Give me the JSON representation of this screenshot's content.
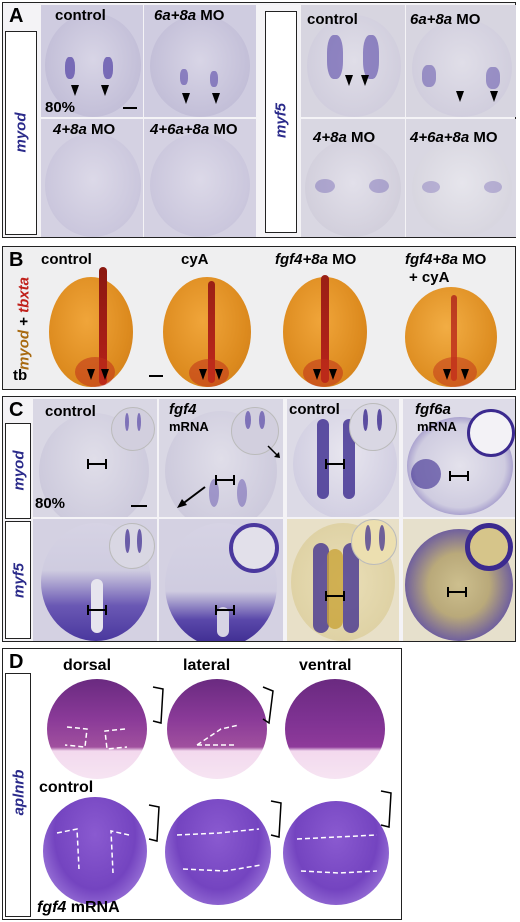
{
  "panel_a": {
    "letter": "A",
    "myod_label": "myod",
    "myf5_label": "myf5",
    "stage": "80%",
    "myod_tiles": [
      {
        "title_plain": "control",
        "title_italic": "",
        "title_suffix": ""
      },
      {
        "title_plain": "",
        "title_italic": "6a+8a",
        "title_suffix": " MO"
      },
      {
        "title_plain": "",
        "title_italic": "4+8a",
        "title_suffix": " MO"
      },
      {
        "title_plain": "",
        "title_italic": "4+6a+8a",
        "title_suffix": " MO"
      }
    ],
    "myf5_tiles": [
      {
        "title_plain": "control",
        "title_italic": "",
        "title_suffix": ""
      },
      {
        "title_plain": "",
        "title_italic": "6a+8a",
        "title_suffix": " MO"
      },
      {
        "title_plain": "",
        "title_italic": "4+8a",
        "title_suffix": " MO"
      },
      {
        "title_plain": "",
        "title_italic": "4+6a+8a",
        "title_suffix": " MO"
      }
    ]
  },
  "panel_b": {
    "letter": "B",
    "side_myod": "myod",
    "side_plus": " + ",
    "side_tbxta": "tbxta",
    "stage": "tb",
    "titles": {
      "t1": "control",
      "t2": "cyA",
      "t3_italic": "fgf4+8a",
      "t3_suffix": " MO",
      "t4_italic": "fgf4+8a",
      "t4_suffix": " MO",
      "t4_line2": "+ cyA"
    }
  },
  "panel_c": {
    "letter": "C",
    "myod_label": "myod",
    "myf5_label": "myf5",
    "stage": "80%",
    "titles": {
      "control_left": "control",
      "fgf4": "fgf4",
      "fgf4_mrna": "mRNA",
      "control_right": "control",
      "fgf6a": "fgf6a",
      "fgf6a_mrna": "mRNA"
    }
  },
  "panel_d": {
    "letter": "D",
    "side_label": "aplnrb",
    "col_dorsal": "dorsal",
    "col_lateral": "lateral",
    "col_ventral": "ventral",
    "row_control": "control",
    "row_fgf4": "fgf4",
    "row_fgf4_suffix": " mRNA"
  },
  "colors": {
    "stain_purple": "#3b2a8f",
    "embryo_pale": "#c9c6da",
    "embryo_orange": "#d98a1f",
    "tbxta_red": "#b3201a",
    "aplnrb_magenta": "#7a2a8a"
  }
}
